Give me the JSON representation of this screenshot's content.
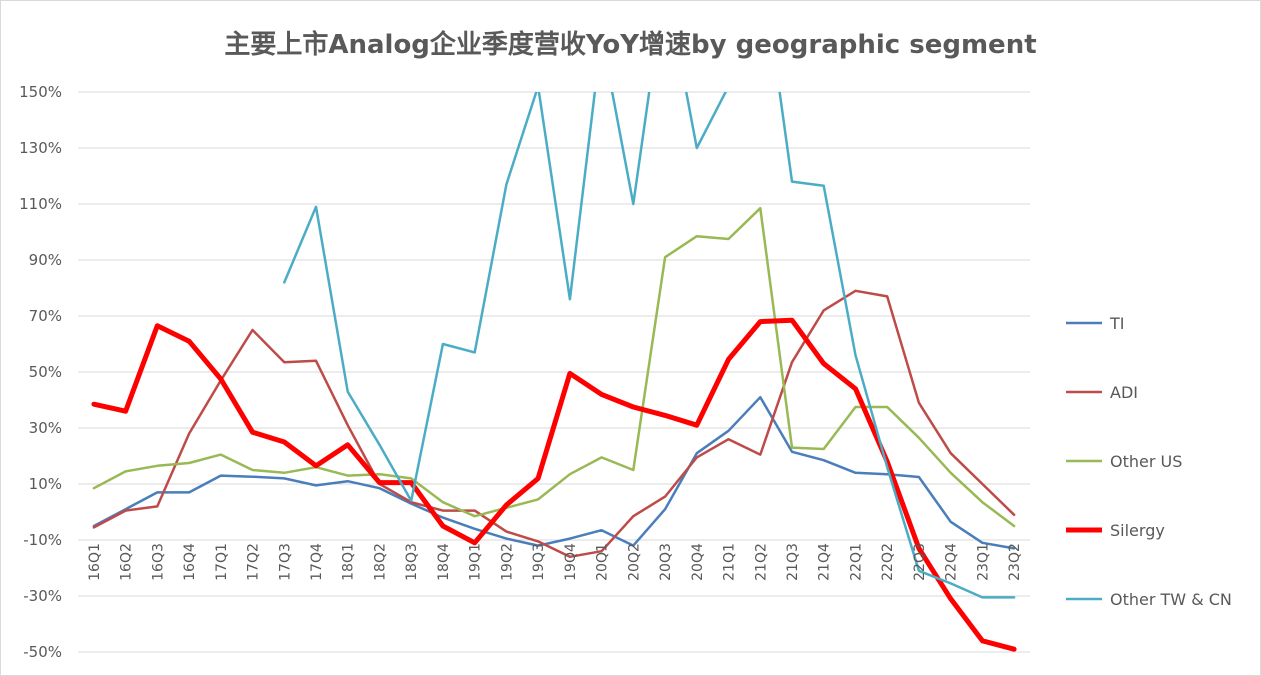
{
  "chart_data": {
    "type": "line",
    "title": "主要上市Analog企业季度营收YoY增速by geographic segment",
    "xlabel": "",
    "ylabel": "",
    "ylim": [
      -50,
      150
    ],
    "yticks": [
      "150%",
      "130%",
      "110%",
      "90%",
      "70%",
      "50%",
      "30%",
      "10%",
      "-10%",
      "-30%",
      "-50%"
    ],
    "grid": true,
    "legend_position": "right",
    "categories": [
      "16Q1",
      "16Q2",
      "16Q3",
      "16Q4",
      "17Q1",
      "17Q2",
      "17Q3",
      "17Q4",
      "18Q1",
      "18Q2",
      "18Q3",
      "18Q4",
      "19Q1",
      "19Q2",
      "19Q3",
      "19Q4",
      "20Q1",
      "20Q2",
      "20Q3",
      "20Q4",
      "21Q1",
      "21Q2",
      "21Q3",
      "21Q4",
      "22Q1",
      "22Q2",
      "22Q3",
      "22Q4",
      "23Q1",
      "23Q2"
    ],
    "series": [
      {
        "name": "TI",
        "color": "#4a7ebb",
        "width": 2.5,
        "values": [
          -5,
          1,
          7,
          7,
          13,
          12.6,
          12,
          9.5,
          11,
          8.5,
          3,
          -2,
          -6,
          -9.5,
          -12,
          -9.5,
          -6.5,
          -12,
          1,
          21,
          29,
          41,
          21.5,
          18.5,
          14,
          13.5,
          12.5,
          -3.5,
          -11,
          -13
        ]
      },
      {
        "name": "ADI",
        "color": "#be4b48",
        "width": 2.5,
        "values": [
          -5.5,
          0.5,
          2,
          28,
          47,
          65,
          53.5,
          54,
          31,
          10,
          3.5,
          0.5,
          0.5,
          -7,
          -10.5,
          -16,
          -14,
          -1.5,
          5.5,
          19.5,
          26,
          20.5,
          53.5,
          72,
          79,
          77,
          39,
          21,
          10,
          -1
        ]
      },
      {
        "name": "Other US",
        "color": "#98b954",
        "width": 2.5,
        "values": [
          8.5,
          14.5,
          16.5,
          17.5,
          20.5,
          15,
          14,
          16,
          13,
          13.5,
          12,
          3.5,
          -1.5,
          1.5,
          4.5,
          13.5,
          19.5,
          15,
          91,
          98.5,
          97.5,
          108.5,
          23,
          22.5,
          37.5,
          37.5,
          26.5,
          14,
          3.5,
          -5
        ]
      },
      {
        "name": "Silergy",
        "color": "#ff0000",
        "width": 5,
        "values": [
          38.5,
          36,
          66.5,
          61,
          47.5,
          28.5,
          25,
          16.5,
          24,
          10.5,
          10.5,
          -5,
          -11,
          2.5,
          12,
          49.5,
          42,
          37.5,
          34.5,
          31,
          54.5,
          68,
          68.5,
          53,
          44,
          18,
          -13,
          -31,
          -46,
          -49
        ]
      },
      {
        "name": "Other TW & CN",
        "color": "#4bacc6",
        "width": 2.5,
        "values": [
          null,
          null,
          null,
          null,
          null,
          null,
          82,
          109,
          43,
          24,
          4,
          60,
          57,
          117,
          152,
          76,
          170,
          110,
          190,
          130,
          152,
          200,
          118,
          116.5,
          56,
          16,
          -21,
          -25.5,
          -30.5,
          -30.5
        ]
      }
    ]
  }
}
